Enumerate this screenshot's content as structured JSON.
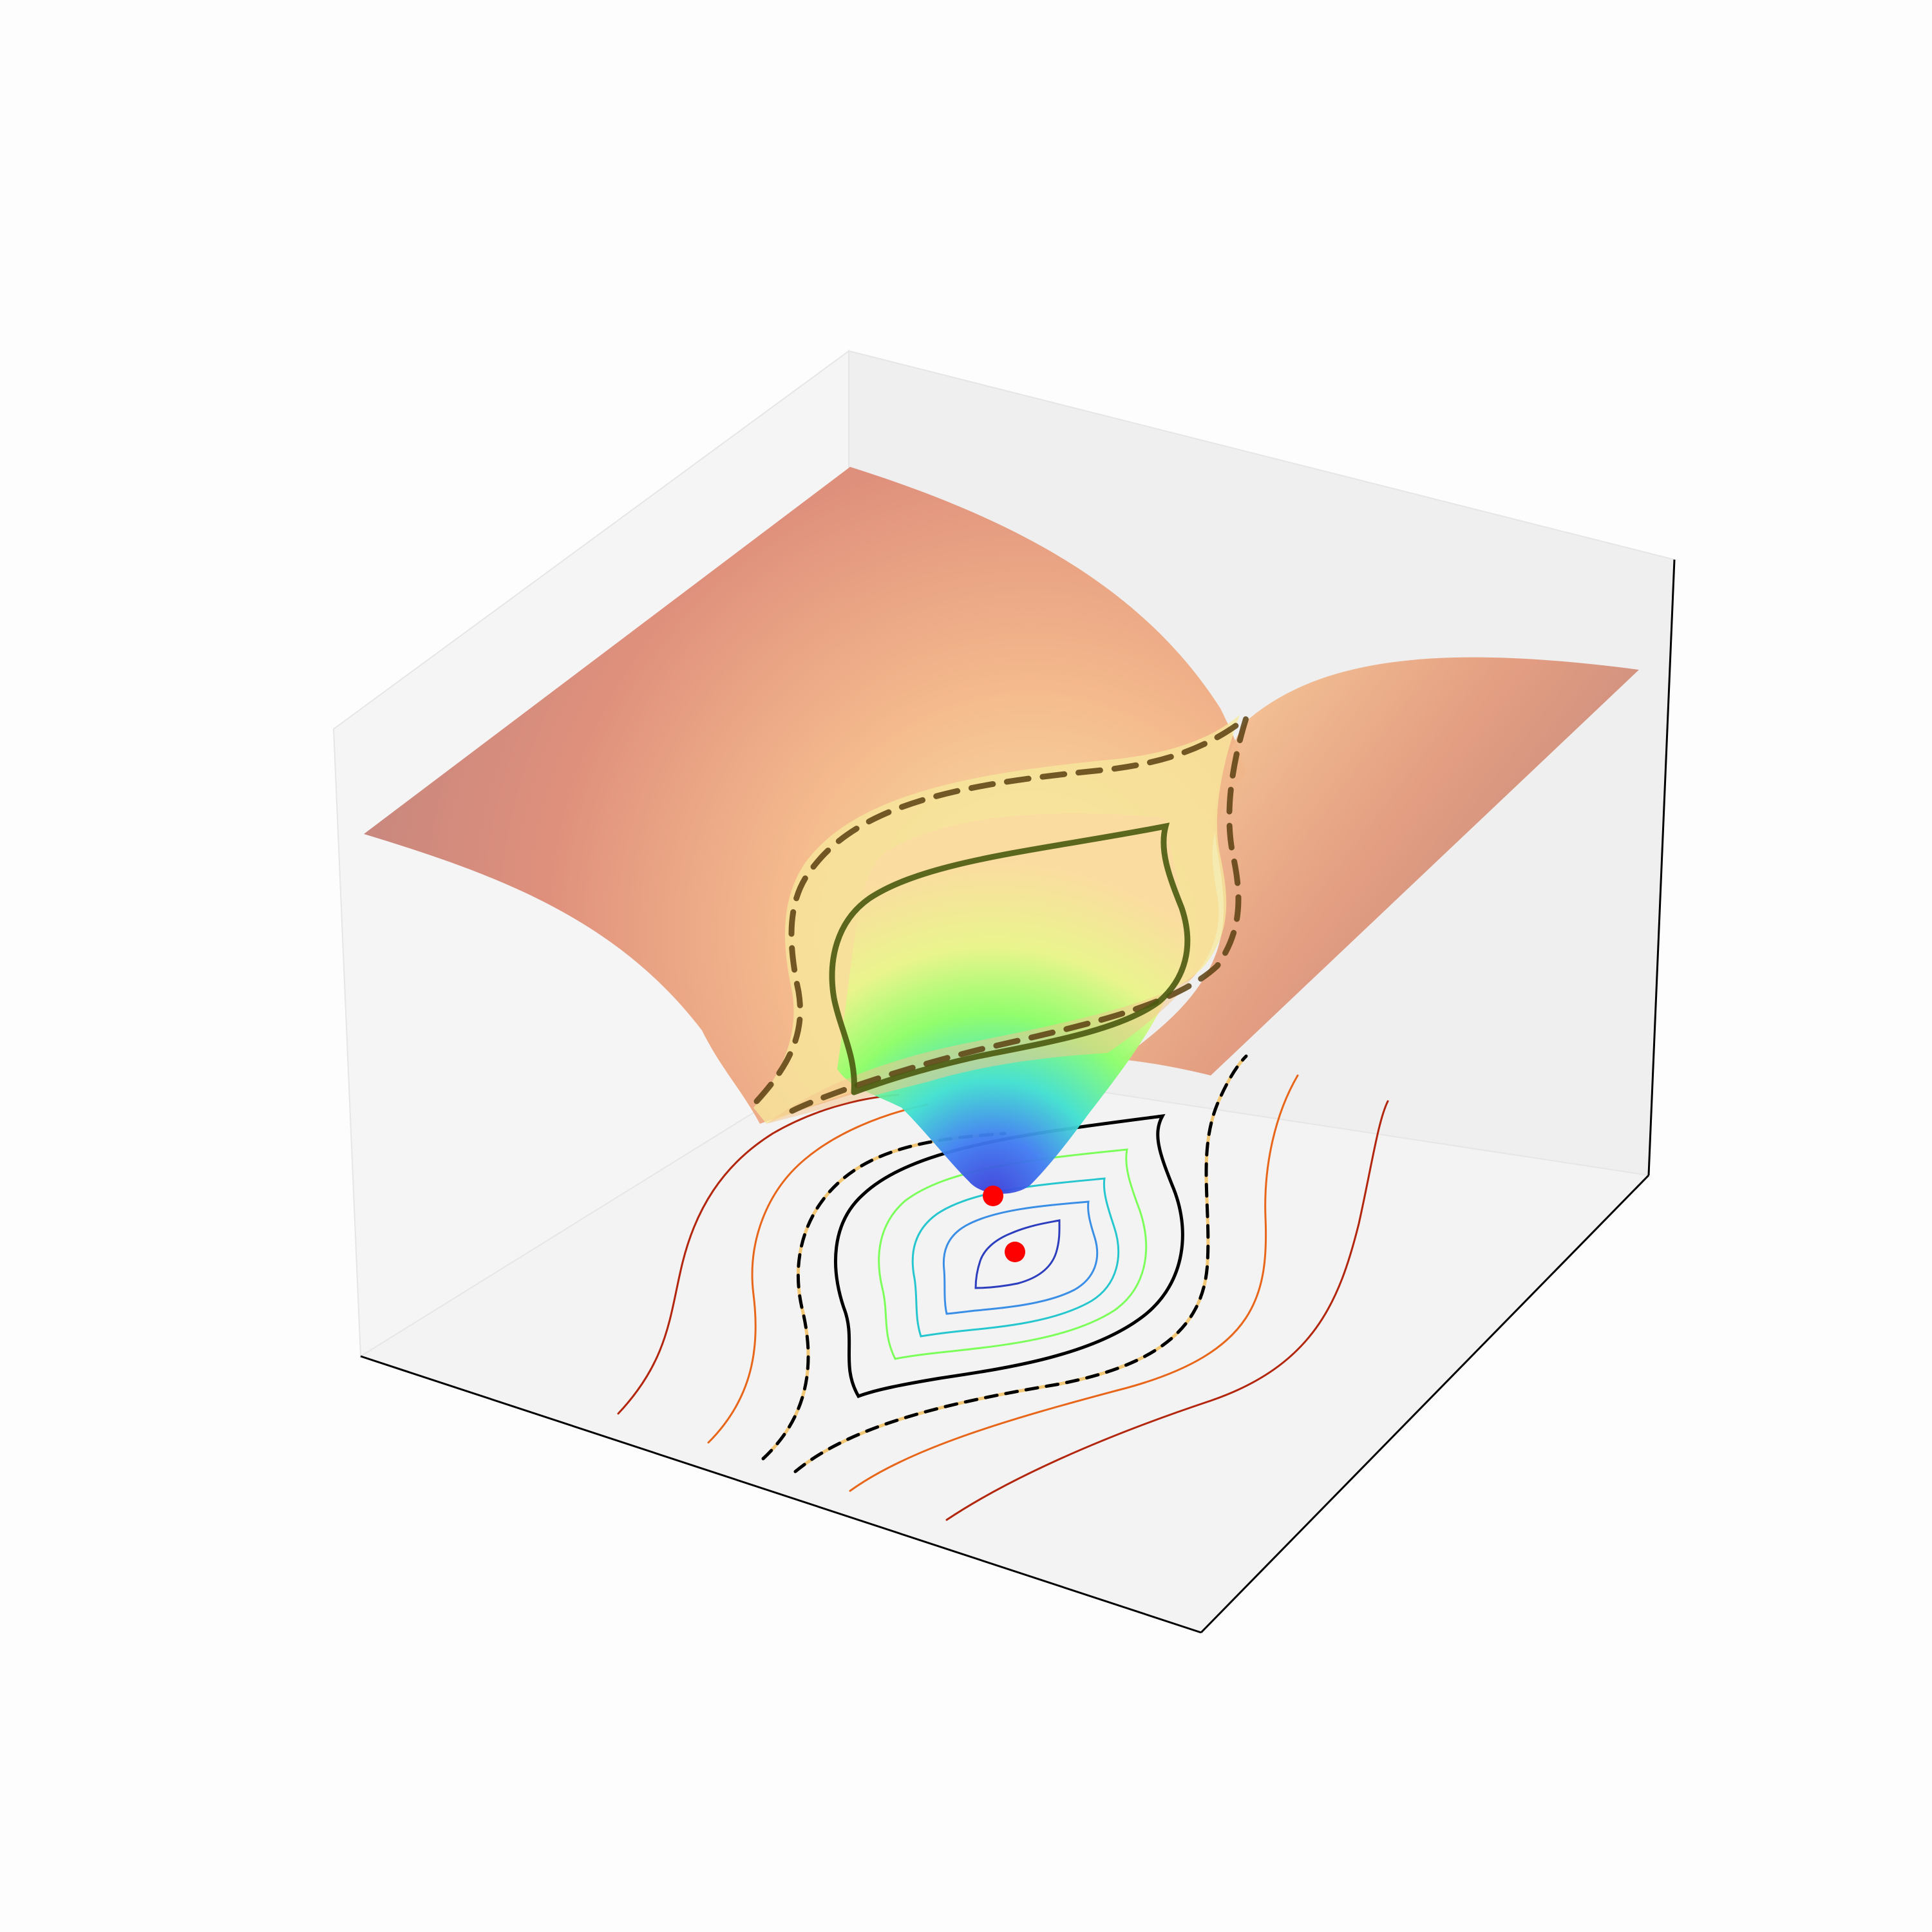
{
  "chart_data": {
    "type": "surface",
    "title": "",
    "xlabel": "",
    "ylabel": "",
    "zlabel": "",
    "colormap": "turbo",
    "grid": false,
    "axis_ticks": false,
    "surface": {
      "description_of_shape": "3D surface with a single narrow funnel-shaped minimum near the center; edges of the domain are high (red/brown), the funnel bottom is low (blue)",
      "alpha": 0.55
    },
    "contours_floor": {
      "colored_levels": [
        0.06,
        0.12,
        0.18,
        0.24,
        0.3,
        0.58,
        0.7
      ],
      "colored_level_colors": [
        "#2c3ebd",
        "#3a8ee6",
        "#26c6cf",
        "#3ff0a8",
        "#7cff5a",
        "#e8661a",
        "#b3260e"
      ],
      "highlight_solid_level": 0.38,
      "highlight_solid_color": "#000000",
      "highlight_dashed_level": 0.48,
      "highlight_dashed_color": "#000000",
      "highlight_dashed_under_color": "#f2c776"
    },
    "contours_surface": {
      "solid_color": "#4a5a10",
      "dashed_color": "#5a4010"
    },
    "markers": [
      {
        "label": "minimum-on-surface",
        "color": "#ff0000"
      },
      {
        "label": "minimum-on-floor",
        "color": "#ff0000"
      }
    ],
    "colors": {
      "pane_left": "#f4f4f4",
      "pane_back": "#eeeeee",
      "pane_floor": "#f2f2f2",
      "edge": "#000000",
      "pane_edge": "#dedede"
    }
  }
}
